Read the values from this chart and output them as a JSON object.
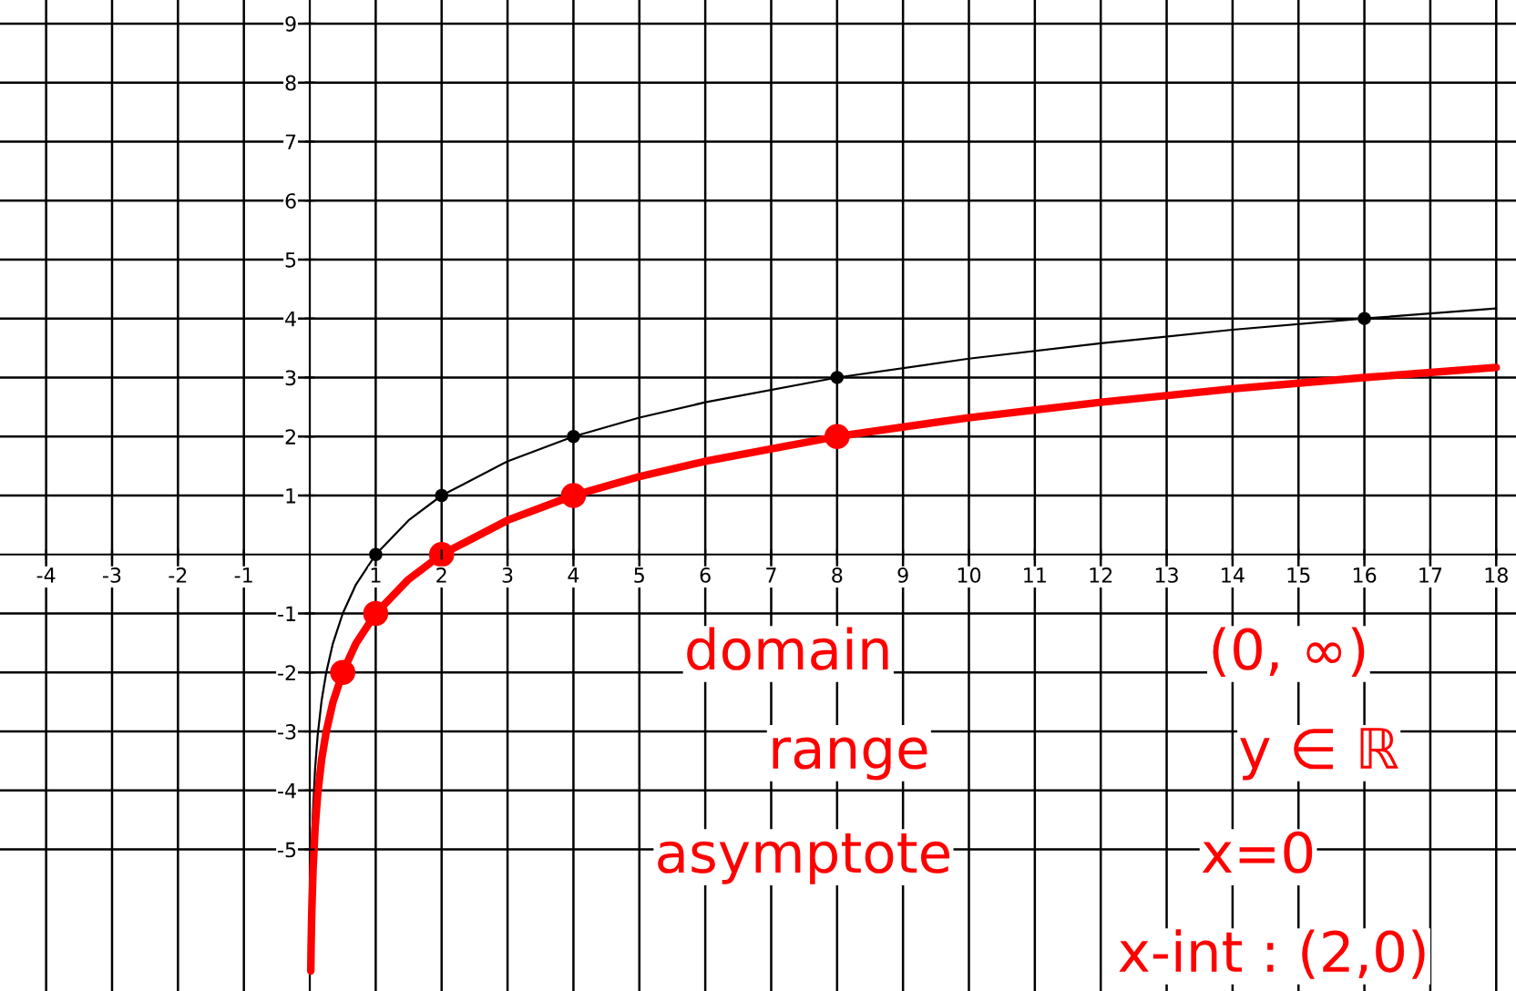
{
  "chart_data": {
    "type": "line",
    "series": [
      {
        "marker": "none",
        "color": "#000000",
        "x": [
          0.03,
          0.05,
          0.08,
          0.12,
          0.18,
          0.25,
          0.35,
          0.5,
          0.7,
          1,
          1.5,
          2,
          3,
          4,
          5,
          6,
          8,
          10,
          12,
          14,
          16,
          18
        ],
        "values": [
          -5.06,
          -4.32,
          -3.64,
          -3.06,
          -2.47,
          -2,
          -1.51,
          -1,
          -0.51,
          0,
          0.58,
          1,
          1.58,
          2,
          2.32,
          2.58,
          3,
          3.32,
          3.58,
          3.81,
          4,
          4.17
        ]
      },
      {
        "marker": "none",
        "color": "#ff0000",
        "x": [
          0.015,
          0.02,
          0.03,
          0.05,
          0.08,
          0.12,
          0.18,
          0.25,
          0.35,
          0.5,
          0.7,
          1,
          1.5,
          2,
          3,
          4,
          5,
          6,
          8,
          10,
          12,
          14,
          16,
          18
        ],
        "values": [
          -7.06,
          -6.64,
          -6.06,
          -5.32,
          -4.64,
          -4.06,
          -3.47,
          -3,
          -2.51,
          -2,
          -1.51,
          -1,
          -0.42,
          0,
          0.58,
          1,
          1.32,
          1.58,
          2,
          2.32,
          2.58,
          2.81,
          3,
          3.17
        ]
      },
      {
        "type": "scatter",
        "marker": "circle",
        "color": "#000000",
        "x": [
          1,
          2,
          4,
          8,
          16
        ],
        "values": [
          0,
          1,
          2,
          3,
          4
        ]
      },
      {
        "type": "scatter",
        "marker": "circle",
        "color": "#ff0000",
        "x": [
          0.5,
          1,
          2,
          4,
          8
        ],
        "values": [
          -2,
          -1,
          0,
          1,
          2
        ]
      }
    ],
    "xlim": [
      -4.7,
      18.3
    ],
    "ylim": [
      -7.4,
      9.4
    ],
    "xticks": [
      -4,
      -3,
      -2,
      -1,
      1,
      2,
      3,
      4,
      5,
      6,
      7,
      8,
      9,
      10,
      11,
      12,
      13,
      14,
      15,
      16,
      17,
      18
    ],
    "yticks": [
      -5,
      -4,
      -3,
      -2,
      -1,
      1,
      2,
      3,
      4,
      5,
      6,
      7,
      8,
      9
    ],
    "grid": true,
    "annotations": [
      "domain",
      "(0, ∞)",
      "range",
      "y ∈ ℝ",
      "asymptote",
      "x=0",
      "x-int : (2,0)"
    ]
  }
}
